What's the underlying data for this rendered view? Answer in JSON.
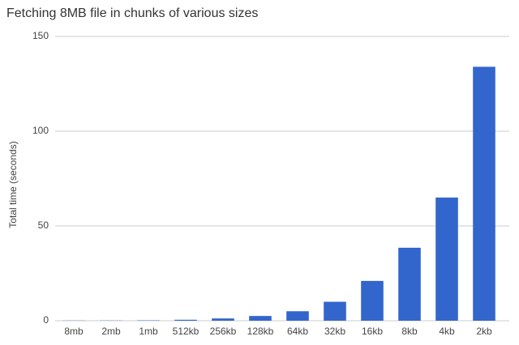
{
  "chart_data": {
    "type": "bar",
    "title": "Fetching 8MB file in chunks of various sizes",
    "y_label": "Total time (seconds)",
    "categories": [
      "8mb",
      "2mb",
      "1mb",
      "512kb",
      "256kb",
      "128kb",
      "64kb",
      "32kb",
      "16kb",
      "8kb",
      "4kb",
      "2kb"
    ],
    "values": [
      0.1,
      0.1,
      0.2,
      0.5,
      1.2,
      2.5,
      5,
      10,
      21,
      38.5,
      65,
      134
    ],
    "color": "#3366cc",
    "ylim": [
      0,
      150
    ],
    "yticks": [
      0,
      50,
      100,
      150
    ],
    "grid": true
  }
}
